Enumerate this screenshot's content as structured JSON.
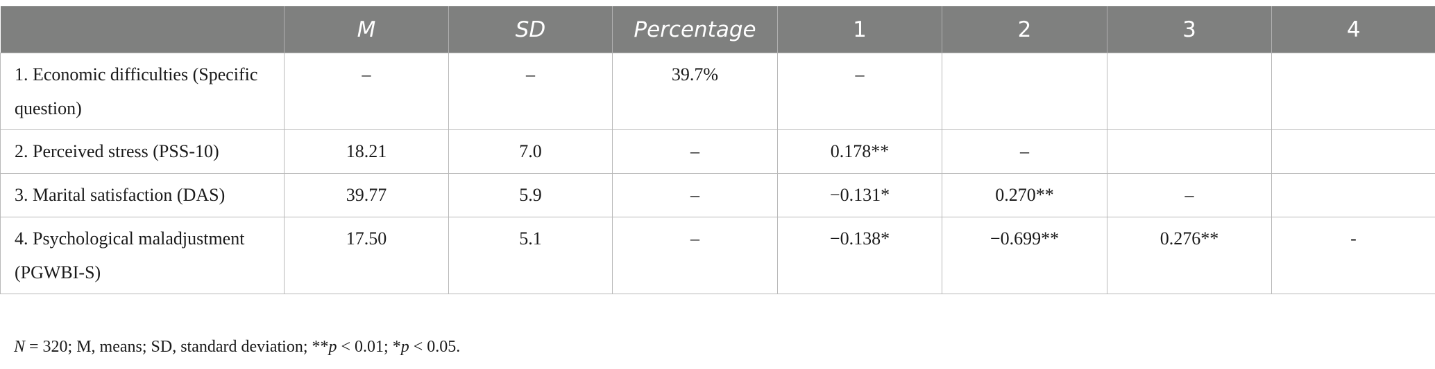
{
  "table": {
    "header": [
      "",
      "M",
      "SD",
      "Percentage",
      "1",
      "2",
      "3",
      "4"
    ],
    "rows": [
      [
        "1. Economic difficulties (Specific question)",
        "–",
        "–",
        "39.7%",
        "–"
      ],
      [
        "2. Perceived stress (PSS-10)",
        "18.21",
        "7.0",
        "–",
        "0.178**",
        "–"
      ],
      [
        "3. Marital satisfaction (DAS)",
        "39.77",
        "5.9",
        "–",
        "−0.131*",
        "0.270**",
        "–"
      ],
      [
        "4. Psychological maladjustment (PGWBI-S)",
        "17.50",
        "5.1",
        "–",
        "−0.138*",
        "−0.699**",
        "0.276**",
        "-"
      ]
    ]
  },
  "note": [
    "N",
    " = 320; M, means; SD, standard deviation; **",
    "p",
    " < 0.01; *",
    "p",
    " < 0.05."
  ]
}
